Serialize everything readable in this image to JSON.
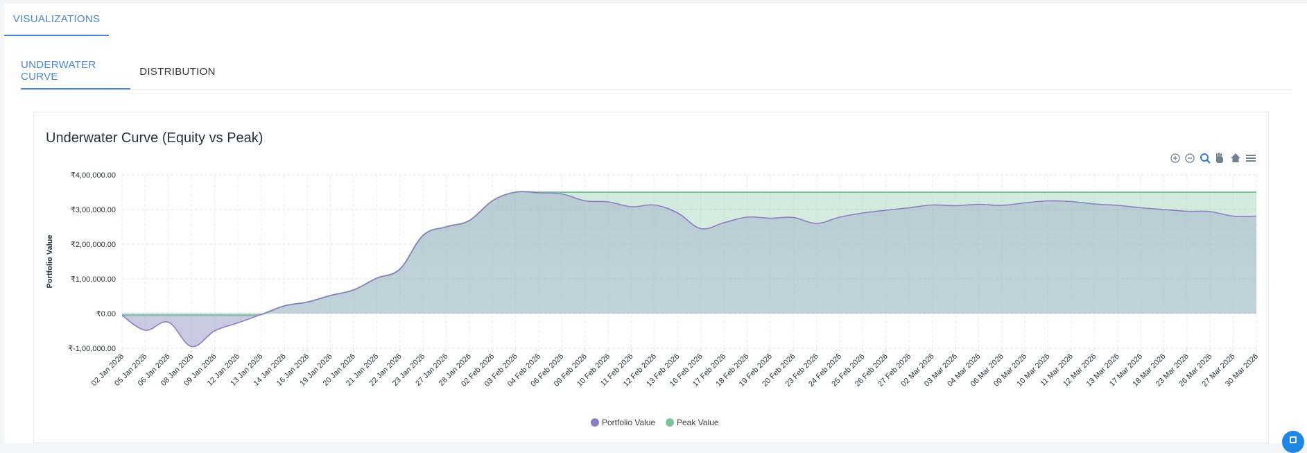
{
  "top_tab": {
    "label": "VISUALIZATIONS"
  },
  "sub_tabs": [
    {
      "label": "UNDERWATER CURVE",
      "active": true
    },
    {
      "label": "DISTRIBUTION",
      "active": false
    }
  ],
  "toolbar": {
    "icons": [
      "zoom-in-icon",
      "zoom-out-icon",
      "zoom-selection-icon",
      "pan-hand-icon",
      "home-reset-icon",
      "menu-icon"
    ]
  },
  "colors": {
    "accent": "#4a86d6",
    "portfolio": "#8e7cc3",
    "peak": "#7cc49a"
  },
  "chart_data": {
    "type": "area",
    "title": "Underwater Curve (Equity vs Peak)",
    "xlabel": "",
    "ylabel": "Portfolio Value",
    "ylim": [
      -100000,
      400000
    ],
    "y_ticks": [
      400000,
      300000,
      200000,
      100000,
      0,
      -100000
    ],
    "y_tick_labels": [
      "₹4,00,000.00",
      "₹3,00,000.00",
      "₹2,00,000.00",
      "₹1,00,000.00",
      "₹0.00",
      "₹-1,00,000.00"
    ],
    "grid": true,
    "legend_position": "bottom-center",
    "categories": [
      "02 Jan 2026",
      "05 Jan 2026",
      "06 Jan 2026",
      "08 Jan 2026",
      "09 Jan 2026",
      "12 Jan 2026",
      "13 Jan 2026",
      "14 Jan 2026",
      "16 Jan 2026",
      "19 Jan 2026",
      "20 Jan 2026",
      "21 Jan 2026",
      "22 Jan 2026",
      "23 Jan 2026",
      "27 Jan 2026",
      "28 Jan 2026",
      "02 Feb 2026",
      "03 Feb 2026",
      "04 Feb 2026",
      "06 Feb 2026",
      "09 Feb 2026",
      "10 Feb 2026",
      "11 Feb 2026",
      "12 Feb 2026",
      "13 Feb 2026",
      "16 Feb 2026",
      "17 Feb 2026",
      "18 Feb 2026",
      "19 Feb 2026",
      "20 Feb 2026",
      "23 Feb 2026",
      "24 Feb 2026",
      "25 Feb 2026",
      "26 Feb 2026",
      "27 Feb 2026",
      "02 Mar 2026",
      "03 Mar 2026",
      "04 Mar 2026",
      "06 Mar 2026",
      "09 Mar 2026",
      "10 Mar 2026",
      "11 Mar 2026",
      "12 Mar 2026",
      "13 Mar 2026",
      "17 Mar 2026",
      "18 Mar 2026",
      "23 Mar 2026",
      "26 Mar 2026",
      "27 Mar 2026",
      "30 Mar 2026"
    ],
    "series": [
      {
        "name": "Portfolio Value",
        "values": [
          -5000,
          -48000,
          -25000,
          -95000,
          -50000,
          -27000,
          -3000,
          22000,
          33000,
          52000,
          68000,
          102000,
          128000,
          225000,
          250000,
          268000,
          325000,
          350000,
          348000,
          345000,
          325000,
          322000,
          308000,
          313000,
          290000,
          245000,
          262000,
          278000,
          275000,
          277000,
          260000,
          278000,
          290000,
          298000,
          305000,
          313000,
          311000,
          315000,
          312000,
          319000,
          325000,
          323000,
          316000,
          312000,
          305000,
          300000,
          295000,
          294000,
          281000,
          281000
        ]
      },
      {
        "name": "Peak Value",
        "values": [
          -5000,
          -5000,
          -5000,
          -5000,
          -5000,
          -5000,
          -3000,
          22000,
          33000,
          52000,
          68000,
          102000,
          128000,
          225000,
          250000,
          268000,
          325000,
          350000,
          350000,
          350000,
          350000,
          350000,
          350000,
          350000,
          350000,
          350000,
          350000,
          350000,
          350000,
          350000,
          350000,
          350000,
          350000,
          350000,
          350000,
          350000,
          350000,
          350000,
          350000,
          350000,
          350000,
          350000,
          350000,
          350000,
          350000,
          350000,
          350000,
          350000,
          350000,
          350000
        ]
      }
    ]
  }
}
